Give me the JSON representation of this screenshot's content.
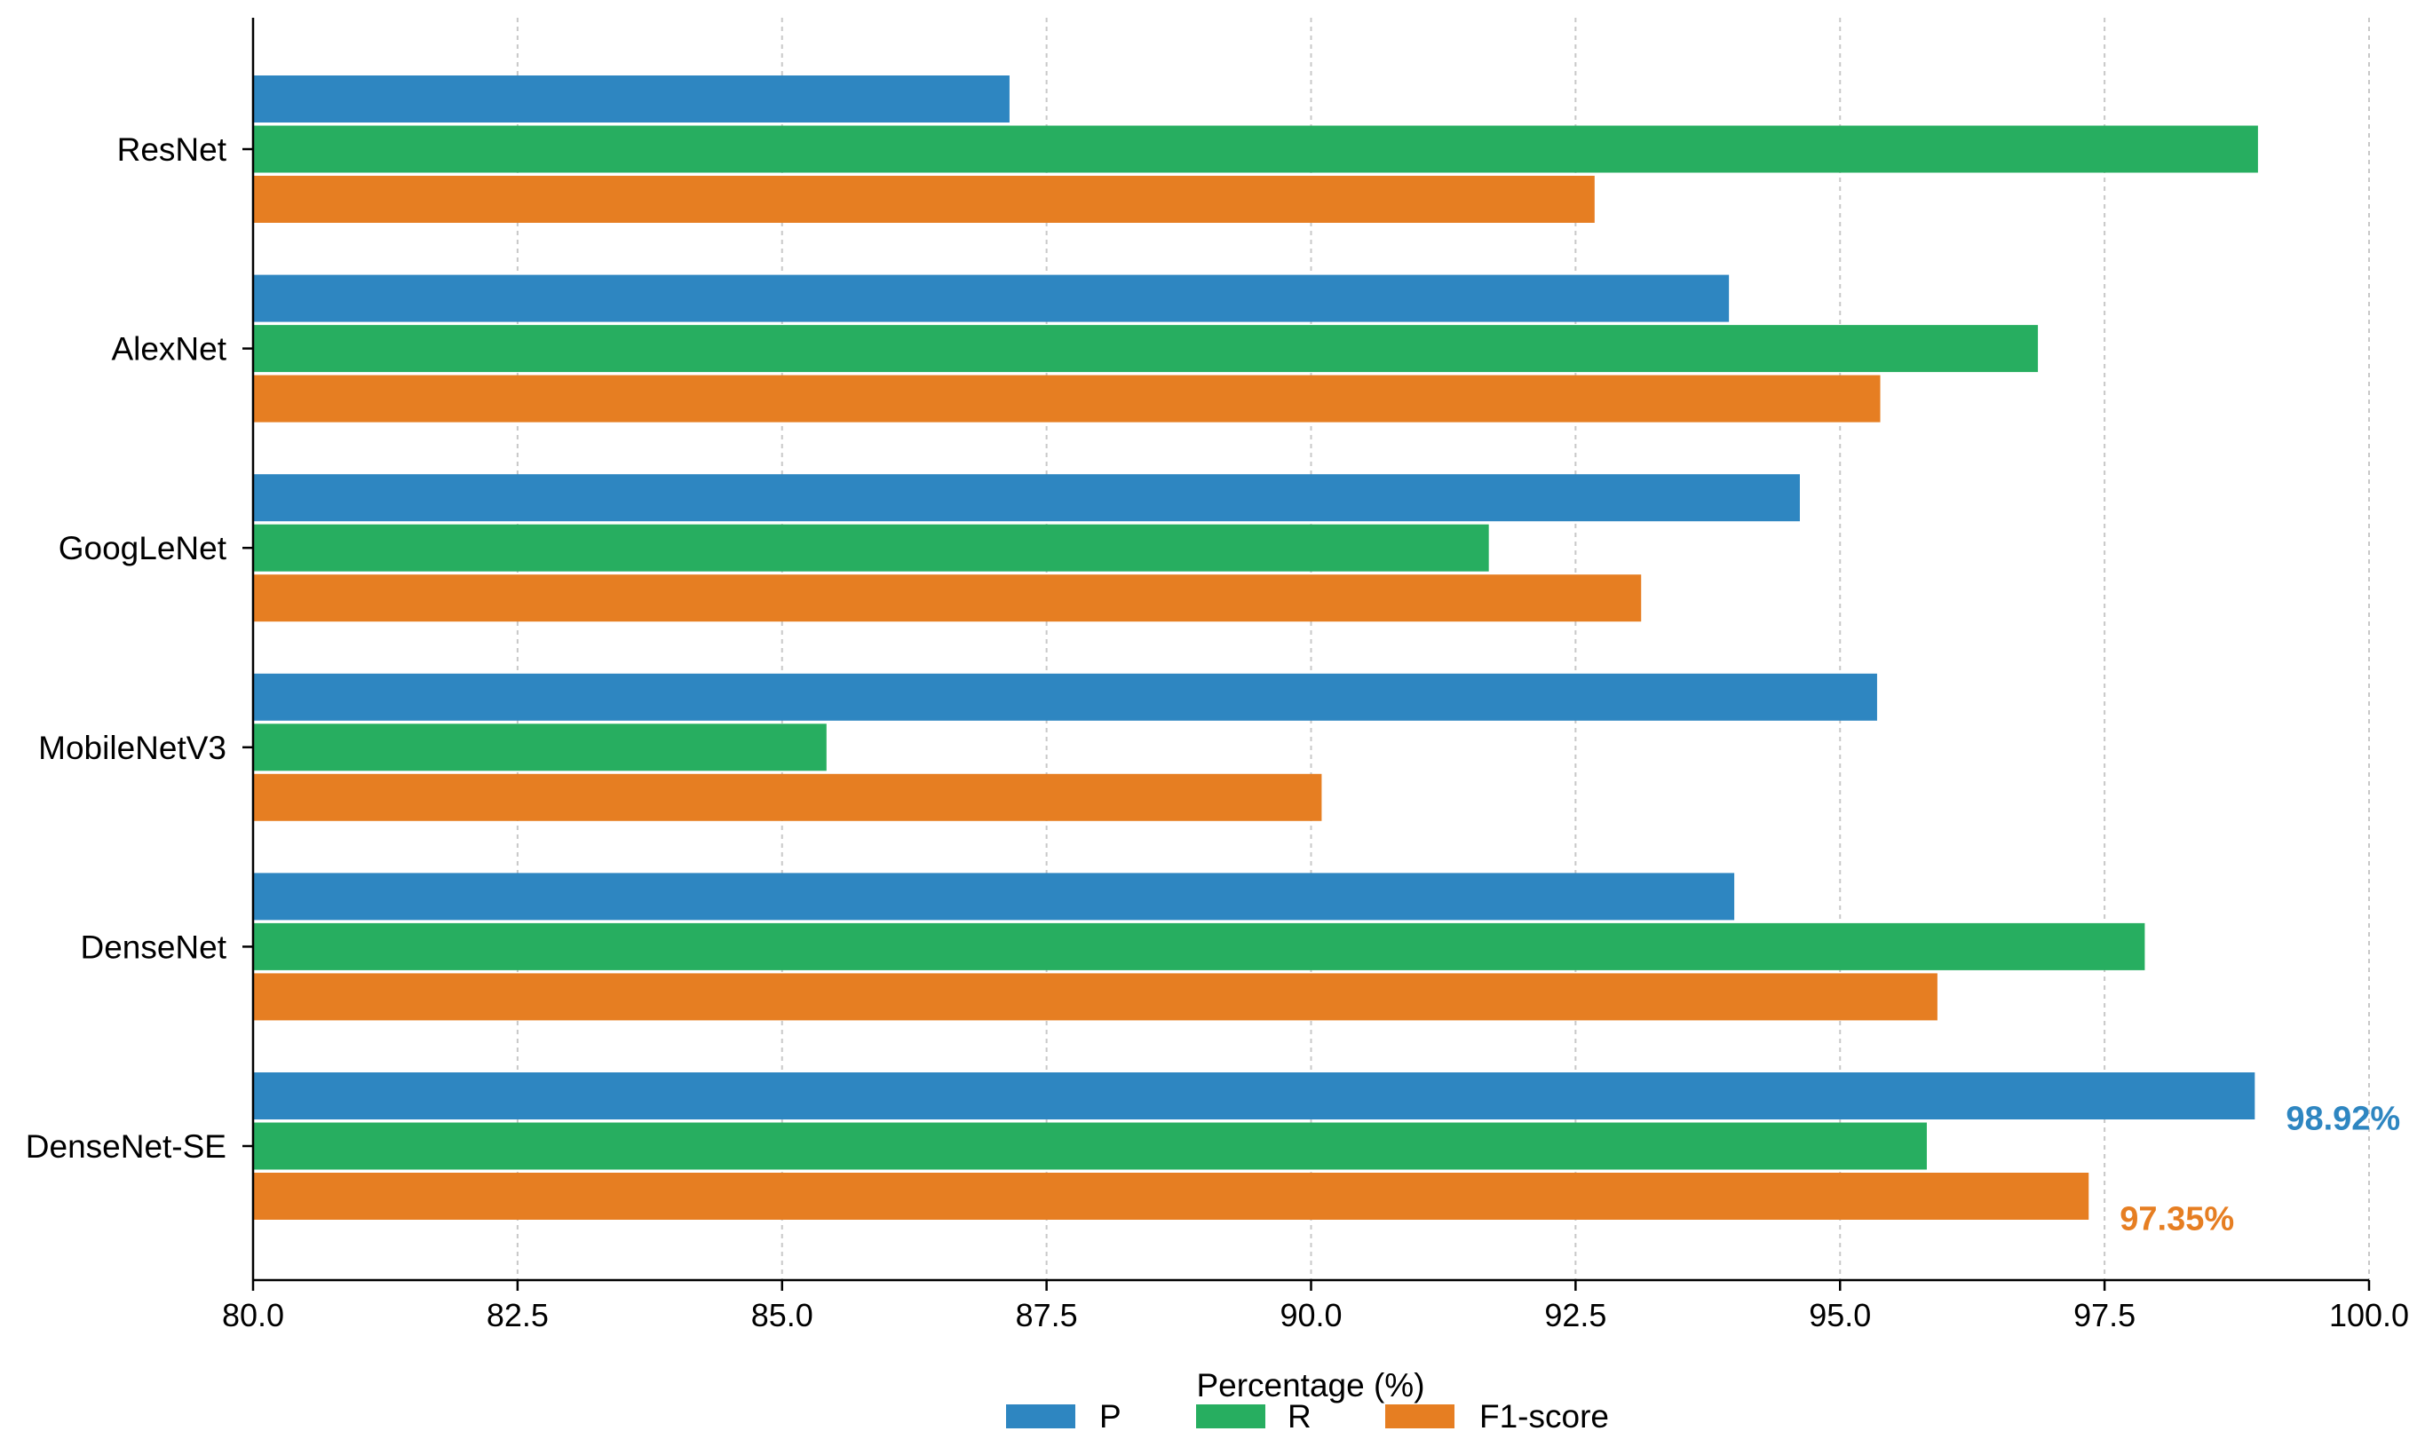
{
  "chart_data": {
    "type": "bar",
    "orientation": "horizontal",
    "title": "",
    "xlabel": "Percentage (%)",
    "ylabel": "",
    "xlim": [
      80.0,
      100.0
    ],
    "xticks": [
      "80.0",
      "82.5",
      "85.0",
      "87.5",
      "90.0",
      "92.5",
      "95.0",
      "97.5",
      "100.0"
    ],
    "grid": "vertical dotted",
    "legend_position": "bottom-center",
    "categories": [
      "ResNet",
      "AlexNet",
      "GoogLeNet",
      "MobileNetV3",
      "DenseNet",
      "DenseNet-SE"
    ],
    "series": [
      {
        "name": "P",
        "color": "#2e86c1",
        "values": [
          87.15,
          93.95,
          94.62,
          95.35,
          94.0,
          98.92
        ]
      },
      {
        "name": "R",
        "color": "#27ae60",
        "values": [
          98.95,
          96.87,
          91.68,
          85.42,
          97.88,
          95.82
        ]
      },
      {
        "name": "F1-score",
        "color": "#e67e22",
        "values": [
          92.68,
          95.38,
          93.12,
          90.1,
          95.92,
          97.35
        ]
      }
    ],
    "annotations": [
      {
        "text": "98.92%",
        "category": "DenseNet-SE",
        "series": "P",
        "color": "#2e86c1"
      },
      {
        "text": "97.35%",
        "category": "DenseNet-SE",
        "series": "F1-score",
        "color": "#e67e22"
      }
    ]
  }
}
